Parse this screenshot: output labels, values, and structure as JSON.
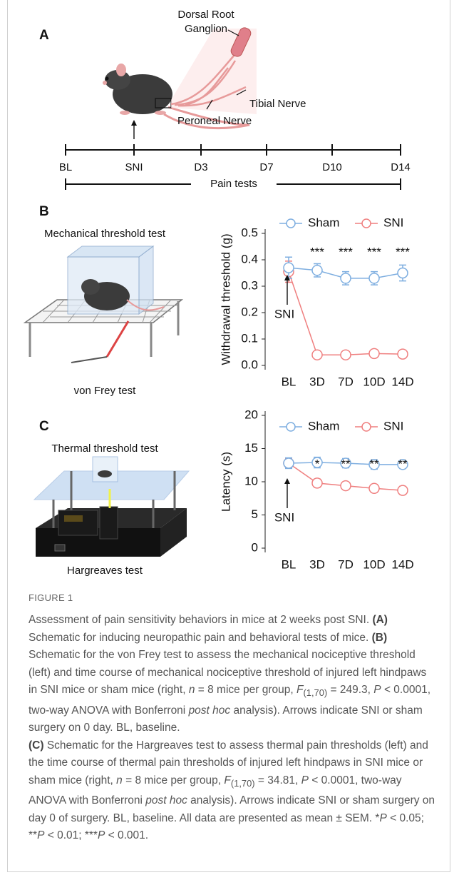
{
  "figure_label": "FIGURE 1",
  "panel_a": {
    "label": "A",
    "labels": [
      "Dorsal Root",
      "Ganglion",
      "Tibial Nerve",
      "Peroneal Nerve"
    ],
    "timeline": [
      "BL",
      "SNI",
      "D3",
      "D7",
      "D10",
      "D14"
    ],
    "pain_tests": "Pain tests"
  },
  "panel_b": {
    "label": "B",
    "title": "Mechanical threshold test",
    "caption": "von Frey test"
  },
  "panel_c": {
    "label": "C",
    "title": "Thermal threshold test",
    "caption": "Hargreaves test"
  },
  "chart_data": [
    {
      "type": "line",
      "y_label": "Withdrawal threshold (g)",
      "legend": "top",
      "categories": [
        "BL",
        "3D",
        "7D",
        "10D",
        "14D"
      ],
      "series": [
        {
          "name": "Sham",
          "color": "#7eaee0",
          "values": [
            0.37,
            0.36,
            0.33,
            0.33,
            0.35
          ],
          "errors": [
            0.04,
            0.025,
            0.025,
            0.025,
            0.03
          ]
        },
        {
          "name": "SNI",
          "color": "#ef7f7f",
          "values": [
            0.355,
            0.04,
            0.04,
            0.045,
            0.043
          ],
          "errors": [
            0.04,
            0.003,
            0.003,
            0.003,
            0.003
          ]
        }
      ],
      "significance": [
        null,
        "***",
        "***",
        "***",
        "***"
      ],
      "annotation": "SNI",
      "ylim": [
        0,
        0.5
      ],
      "yticks": [
        {
          "value": 0,
          "label": "0.0"
        },
        0.1,
        0.2,
        0.3,
        0.4,
        0.5
      ]
    },
    {
      "type": "line",
      "y_label": "Latency (s)",
      "legend": "top",
      "categories": [
        "BL",
        "3D",
        "7D",
        "10D",
        "14D"
      ],
      "series": [
        {
          "name": "Sham",
          "color": "#7eaee0",
          "values": [
            12.8,
            12.9,
            12.8,
            12.6,
            12.6
          ],
          "errors": [
            0.8,
            0.8,
            0.7,
            0.7,
            0.6
          ]
        },
        {
          "name": "SNI",
          "color": "#ef7f7f",
          "values": [
            12.8,
            9.8,
            9.4,
            9.0,
            8.7
          ],
          "errors": [
            0.7,
            0.6,
            0.5,
            0.6,
            0.6
          ]
        }
      ],
      "significance": [
        null,
        "*",
        "**",
        "**",
        "**"
      ],
      "annotation": "SNI",
      "ylim": [
        0,
        20
      ],
      "yticks": [
        0,
        5,
        10,
        15,
        20
      ]
    }
  ],
  "caption": [
    "Assessment of pain sensitivity behaviors in mice at 2 weeks post SNI. ",
    "(A)",
    " Schematic for inducing neuropathic pain and behavioral tests of mice. ",
    "(B)",
    " Schematic for the von Frey test to assess the mechanical nociceptive threshold (left) and time course of mechanical nociceptive threshold of injured left hindpaws in SNI mice or sham mice (right, ",
    "n",
    " = 8 mice per group, ",
    "F",
    "(1,70)",
    " = 249.3, ",
    "P",
    " < 0.0001, two-way ANOVA with Bonferroni ",
    "post hoc",
    " analysis). Arrows indicate SNI or sham surgery on 0 day. BL, baseline. ",
    "(C)",
    " Schematic for the Hargreaves test to assess thermal pain thresholds (left) and the time course of thermal pain thresholds of injured left hindpaws in SNI mice or sham mice (right, ",
    "n",
    " = 8 mice per group, ",
    "F",
    "(1,70)",
    " = 34.81, ",
    "P",
    " < 0.0001, two-way ANOVA with Bonferroni ",
    "post hoc",
    " analysis). Arrows indicate SNI or sham surgery on day 0 of surgery. BL, baseline. All data are presented as mean ± SEM. *",
    "P",
    " < 0.05; **",
    "P",
    " < 0.01; ***",
    "P",
    " < 0.001."
  ]
}
